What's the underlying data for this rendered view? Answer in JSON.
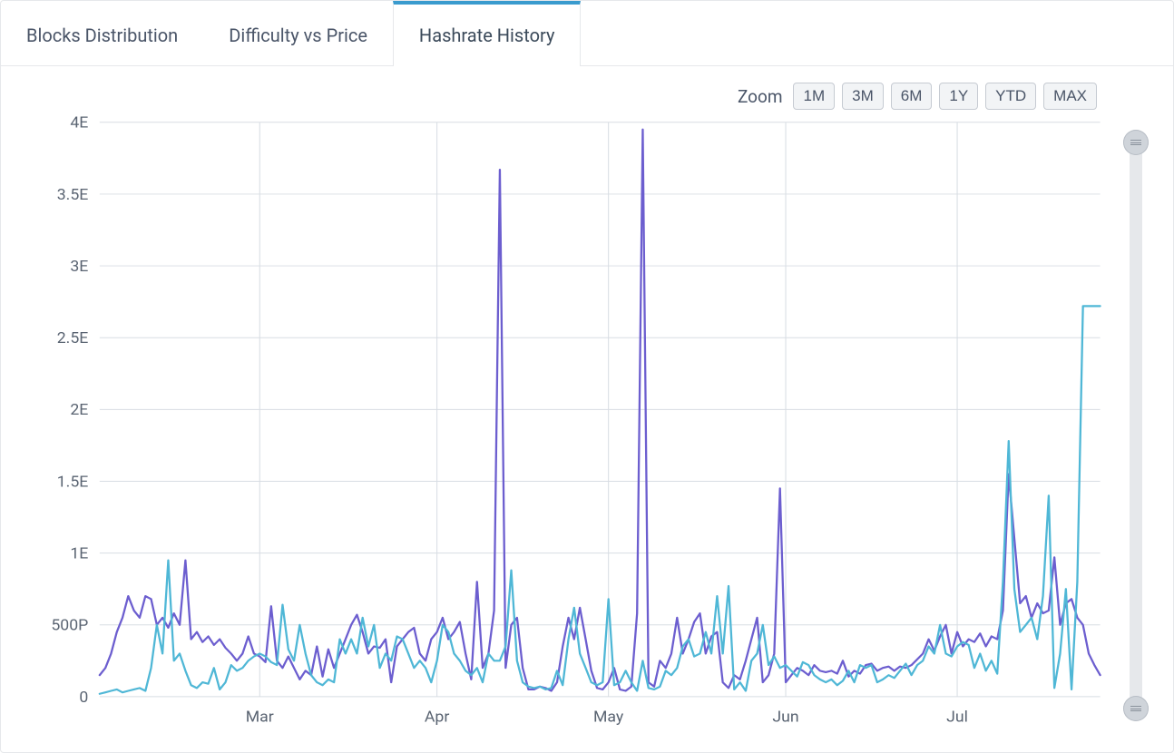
{
  "tabs": [
    {
      "label": "Blocks Distribution",
      "active": false
    },
    {
      "label": "Difficulty vs Price",
      "active": false
    },
    {
      "label": "Hashrate History",
      "active": true
    }
  ],
  "zoom": {
    "label": "Zoom",
    "options": [
      "1M",
      "3M",
      "6M",
      "1Y",
      "YTD",
      "MAX"
    ]
  },
  "chart": {
    "type": "line",
    "background_color": "#ffffff",
    "grid_color": "#d8dde3",
    "axis_label_color": "#5a6472",
    "axis_label_fontsize": 17,
    "line_width": 2.2,
    "y": {
      "min": 0,
      "max": 4.0,
      "ticks": [
        {
          "v": 0,
          "label": "0"
        },
        {
          "v": 0.5,
          "label": "500P"
        },
        {
          "v": 1.0,
          "label": "1E"
        },
        {
          "v": 1.5,
          "label": "1.5E"
        },
        {
          "v": 2.0,
          "label": "2E"
        },
        {
          "v": 2.5,
          "label": "2.5E"
        },
        {
          "v": 3.0,
          "label": "3E"
        },
        {
          "v": 3.5,
          "label": "3.5E"
        },
        {
          "v": 4.0,
          "label": "4E"
        }
      ]
    },
    "x": {
      "min": 0,
      "max": 175,
      "month_ticks": [
        {
          "v": 28,
          "label": "Mar"
        },
        {
          "v": 59,
          "label": "Apr"
        },
        {
          "v": 89,
          "label": "May"
        },
        {
          "v": 120,
          "label": "Jun"
        },
        {
          "v": 150,
          "label": "Jul"
        }
      ]
    },
    "series": [
      {
        "name": "series-a",
        "color": "#6c5ecf",
        "data": [
          0.15,
          0.2,
          0.3,
          0.45,
          0.55,
          0.7,
          0.6,
          0.55,
          0.7,
          0.68,
          0.5,
          0.55,
          0.48,
          0.58,
          0.5,
          0.95,
          0.4,
          0.45,
          0.38,
          0.42,
          0.36,
          0.4,
          0.34,
          0.3,
          0.25,
          0.3,
          0.42,
          0.3,
          0.28,
          0.24,
          0.63,
          0.25,
          0.2,
          0.28,
          0.2,
          0.12,
          0.18,
          0.15,
          0.35,
          0.14,
          0.33,
          0.2,
          0.3,
          0.4,
          0.5,
          0.57,
          0.45,
          0.3,
          0.35,
          0.34,
          0.4,
          0.1,
          0.35,
          0.4,
          0.45,
          0.48,
          0.3,
          0.25,
          0.4,
          0.45,
          0.55,
          0.4,
          0.45,
          0.52,
          0.3,
          0.12,
          0.8,
          0.2,
          0.3,
          0.6,
          3.67,
          0.2,
          0.5,
          0.55,
          0.2,
          0.05,
          0.05,
          0.07,
          0.06,
          0.04,
          0.1,
          0.35,
          0.55,
          0.4,
          0.62,
          0.4,
          0.18,
          0.06,
          0.05,
          0.1,
          0.2,
          0.05,
          0.04,
          0.07,
          0.58,
          3.95,
          0.1,
          0.07,
          0.25,
          0.2,
          0.3,
          0.55,
          0.3,
          0.4,
          0.52,
          0.58,
          0.3,
          0.42,
          0.45,
          0.1,
          0.06,
          0.15,
          0.12,
          0.25,
          0.4,
          0.55,
          0.1,
          0.15,
          0.3,
          1.45,
          0.1,
          0.15,
          0.2,
          0.18,
          0.15,
          0.22,
          0.18,
          0.17,
          0.18,
          0.16,
          0.25,
          0.14,
          0.18,
          0.16,
          0.22,
          0.23,
          0.18,
          0.2,
          0.21,
          0.18,
          0.21,
          0.2,
          0.22,
          0.26,
          0.3,
          0.4,
          0.32,
          0.42,
          0.5,
          0.3,
          0.45,
          0.35,
          0.4,
          0.38,
          0.44,
          0.35,
          0.42,
          0.4,
          0.6,
          1.55,
          1.1,
          0.65,
          0.7,
          0.55,
          0.65,
          0.58,
          0.6,
          0.97,
          0.5,
          0.65,
          0.68,
          0.55,
          0.5,
          0.3,
          0.22,
          0.15
        ]
      },
      {
        "name": "series-b",
        "color": "#4fb7d6",
        "data": [
          0.02,
          0.03,
          0.04,
          0.05,
          0.03,
          0.04,
          0.05,
          0.06,
          0.04,
          0.2,
          0.5,
          0.3,
          0.95,
          0.25,
          0.3,
          0.18,
          0.08,
          0.06,
          0.1,
          0.09,
          0.2,
          0.05,
          0.1,
          0.22,
          0.18,
          0.2,
          0.25,
          0.28,
          0.3,
          0.28,
          0.24,
          0.22,
          0.64,
          0.33,
          0.25,
          0.5,
          0.3,
          0.15,
          0.1,
          0.08,
          0.12,
          0.1,
          0.4,
          0.3,
          0.4,
          0.3,
          0.55,
          0.35,
          0.5,
          0.2,
          0.3,
          0.25,
          0.42,
          0.4,
          0.3,
          0.2,
          0.25,
          0.2,
          0.1,
          0.25,
          0.5,
          0.45,
          0.3,
          0.25,
          0.18,
          0.15,
          0.2,
          0.1,
          0.3,
          0.25,
          0.25,
          0.35,
          0.88,
          0.25,
          0.1,
          0.07,
          0.06,
          0.07,
          0.05,
          0.06,
          0.18,
          0.08,
          0.4,
          0.62,
          0.3,
          0.2,
          0.1,
          0.08,
          0.1,
          0.68,
          0.08,
          0.1,
          0.18,
          0.1,
          0.04,
          0.25,
          0.06,
          0.05,
          0.07,
          0.18,
          0.15,
          0.2,
          0.35,
          0.4,
          0.28,
          0.3,
          0.45,
          0.3,
          0.7,
          0.3,
          0.77,
          0.05,
          0.1,
          0.04,
          0.25,
          0.3,
          0.5,
          0.22,
          0.28,
          0.2,
          0.22,
          0.18,
          0.14,
          0.24,
          0.22,
          0.15,
          0.12,
          0.1,
          0.12,
          0.08,
          0.11,
          0.18,
          0.1,
          0.22,
          0.2,
          0.22,
          0.1,
          0.12,
          0.15,
          0.13,
          0.18,
          0.23,
          0.15,
          0.22,
          0.25,
          0.35,
          0.3,
          0.5,
          0.3,
          0.28,
          0.35,
          0.38,
          0.36,
          0.2,
          0.3,
          0.18,
          0.25,
          0.16,
          0.8,
          1.78,
          0.75,
          0.45,
          0.5,
          0.55,
          0.4,
          0.7,
          1.4,
          0.06,
          0.3,
          0.75,
          0.05,
          0.8,
          2.72,
          2.72,
          2.72,
          2.72
        ]
      }
    ]
  }
}
